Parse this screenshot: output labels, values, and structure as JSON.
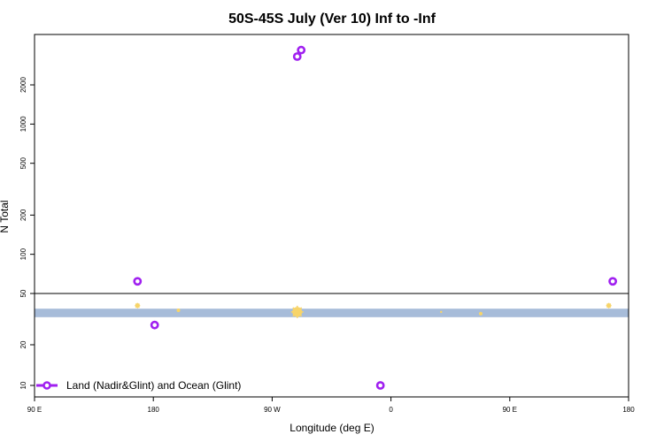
{
  "chart_data": {
    "type": "scatter",
    "title": "50S-45S July (Ver 10)   Inf to -Inf",
    "xlabel": "Longitude (deg E)",
    "ylabel": "N Total",
    "x_ticks": [
      {
        "value": 90,
        "label": "90 E"
      },
      {
        "value": 180,
        "label": "180"
      },
      {
        "value": 270,
        "label": "90 W"
      },
      {
        "value": 360,
        "label": "0"
      },
      {
        "value": 450,
        "label": "90 E"
      },
      {
        "value": 540,
        "label": "180"
      }
    ],
    "xlim": [
      90,
      540
    ],
    "y_upper_ticks": [
      {
        "value": 50,
        "label": "50"
      },
      {
        "value": 100,
        "label": "100"
      },
      {
        "value": 200,
        "label": "200"
      },
      {
        "value": 500,
        "label": "500"
      },
      {
        "value": 1000,
        "label": "1000"
      },
      {
        "value": 2000,
        "label": "2000"
      }
    ],
    "y_lower_ticks": [
      {
        "value": 10,
        "label": "10"
      },
      {
        "value": 20,
        "label": "20"
      }
    ],
    "y_scale": "log",
    "series": [
      {
        "name": "Land (Nadir&Glint) and Ocean (Glint)",
        "color": "#a020f0",
        "points": [
          {
            "x": 168,
            "y": 62
          },
          {
            "x": 181,
            "y": 28
          },
          {
            "x": 289,
            "y": 3300
          },
          {
            "x": 292,
            "y": 3700
          },
          {
            "x": 352,
            "y": 10
          },
          {
            "x": 528,
            "y": 62
          }
        ]
      }
    ],
    "band": {
      "color": "#a7bcd9",
      "y_from": 32,
      "y_to": 37
    },
    "glyph_markers": {
      "color": "#f7d46a",
      "points": [
        {
          "x": 168,
          "y": 39,
          "size": 3
        },
        {
          "x": 199,
          "y": 36,
          "size": 2
        },
        {
          "x": 289,
          "y": 35,
          "size": 7
        },
        {
          "x": 398,
          "y": 35,
          "size": 1
        },
        {
          "x": 428,
          "y": 34,
          "size": 2
        },
        {
          "x": 525,
          "y": 39,
          "size": 3
        }
      ]
    }
  }
}
